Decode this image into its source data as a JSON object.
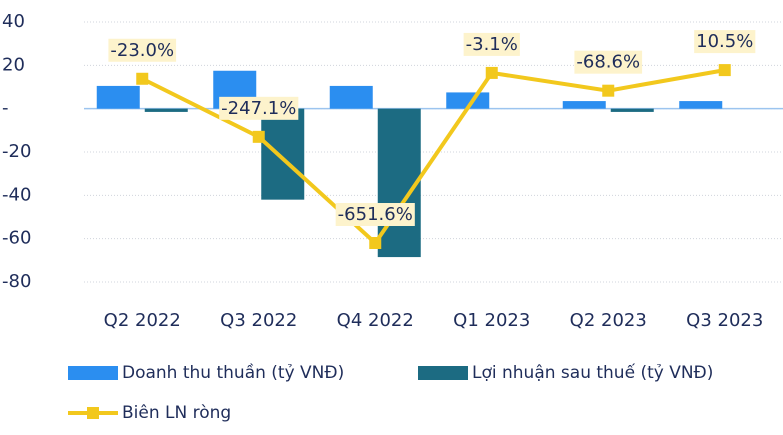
{
  "chart_data": {
    "type": "bar",
    "categories": [
      "Q2 2022",
      "Q3 2022",
      "Q4 2022",
      "Q1 2023",
      "Q2 2023",
      "Q3 2023"
    ],
    "series": [
      {
        "name": "Doanh thu thuần (tỷ VNĐ)",
        "color": "#2b8ef0",
        "values": [
          10.5,
          17.5,
          10.5,
          7.5,
          3.5,
          3.5
        ]
      },
      {
        "name": "Lợi nhuận sau thuế (tỷ VNĐ)",
        "color": "#1c6b82",
        "values": [
          -1.5,
          -42,
          -68.5,
          0,
          -1.5,
          0
        ]
      },
      {
        "name": "Biên LN ròng",
        "color": "#f2c81d",
        "type": "line",
        "values": [
          13.8,
          -13,
          -62,
          16.5,
          8.3,
          17.8
        ]
      }
    ],
    "annotations": [
      "-23.0%",
      "-247.1%",
      "-651.6%",
      "-3.1%",
      "-68.6%",
      "10.5%"
    ],
    "ylim": [
      -80,
      40
    ],
    "yticks": [
      -80,
      -60,
      -40,
      -20,
      {
        "value": 0,
        "label": "-"
      },
      20,
      40
    ],
    "grid": true
  }
}
